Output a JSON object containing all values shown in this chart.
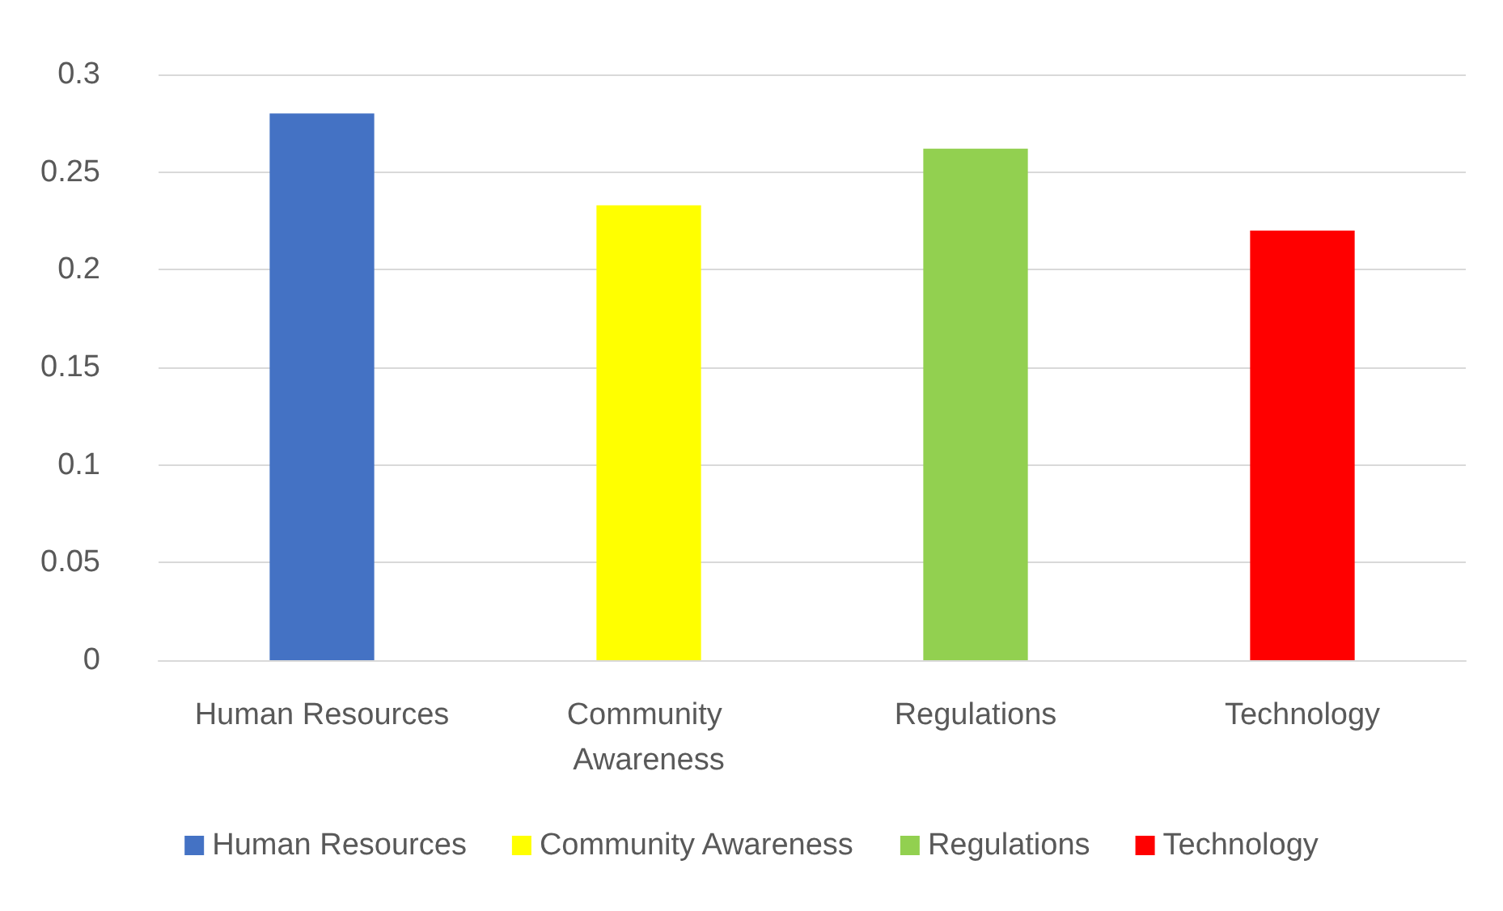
{
  "chart_data": {
    "type": "bar",
    "categories": [
      "Human Resources",
      "Community Awareness",
      "Regulations",
      "Technology"
    ],
    "series": [
      {
        "name": "Human Resources",
        "color": "#4472c4",
        "values": [
          0.28,
          null,
          null,
          null
        ]
      },
      {
        "name": "Community Awareness",
        "color": "#ffff00",
        "values": [
          null,
          0.233,
          null,
          null
        ]
      },
      {
        "name": "Regulations",
        "color": "#92d050",
        "values": [
          null,
          null,
          0.262,
          null
        ]
      },
      {
        "name": "Technology",
        "color": "#ff0000",
        "values": [
          null,
          null,
          null,
          0.22
        ]
      }
    ],
    "stacked": true,
    "ylim": [
      0,
      0.3
    ],
    "yticks": [
      0,
      0.05,
      0.1,
      0.15,
      0.2,
      0.25,
      0.3
    ],
    "grid": "y",
    "legend": "bottom"
  }
}
